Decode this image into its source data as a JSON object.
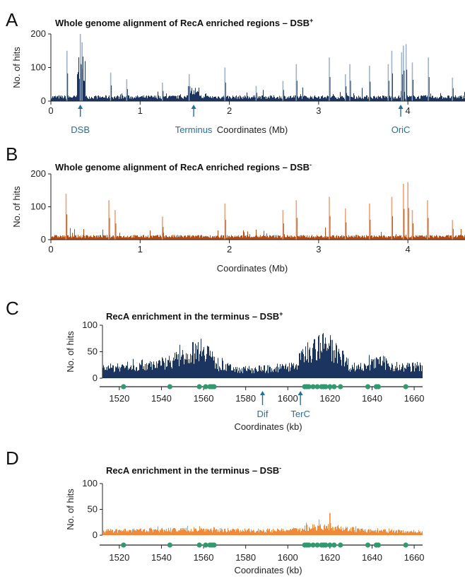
{
  "colors": {
    "dsb_plus": "#1b3560",
    "dsb_plus_spike": "#9fb3c8",
    "dsb_minus": "#b84a12",
    "dsb_minus_spike": "#e7a57f",
    "terminus_minus": "#f0893a",
    "marker": "#2e9a6e",
    "annotation": "#1f6f9f"
  },
  "chart_data": [
    {
      "panel": "A",
      "type": "area",
      "title_main": "Whole genome alignment of RecA enriched regions – DSB",
      "title_sup": "+",
      "xlabel": "Coordinates (Mb)",
      "ylabel": "No. of hits",
      "xlim": [
        0,
        4.64
      ],
      "ylim": [
        0,
        200
      ],
      "xticks": [
        0,
        1,
        2,
        3,
        4
      ],
      "yticks": [
        0,
        100,
        200
      ],
      "baseline": 12,
      "spikes": [
        {
          "x": 0.18,
          "y": 150
        },
        {
          "x": 0.33,
          "y": 200
        },
        {
          "x": 0.35,
          "y": 175
        },
        {
          "x": 0.67,
          "y": 85
        },
        {
          "x": 0.85,
          "y": 65
        },
        {
          "x": 1.25,
          "y": 55
        },
        {
          "x": 1.55,
          "y": 80
        },
        {
          "x": 1.95,
          "y": 100
        },
        {
          "x": 2.3,
          "y": 45
        },
        {
          "x": 2.6,
          "y": 60
        },
        {
          "x": 2.75,
          "y": 110
        },
        {
          "x": 3.12,
          "y": 130
        },
        {
          "x": 3.3,
          "y": 80
        },
        {
          "x": 3.35,
          "y": 110
        },
        {
          "x": 3.57,
          "y": 105
        },
        {
          "x": 3.78,
          "y": 110
        },
        {
          "x": 3.82,
          "y": 150
        },
        {
          "x": 3.93,
          "y": 145
        },
        {
          "x": 3.95,
          "y": 165
        },
        {
          "x": 3.98,
          "y": 170
        },
        {
          "x": 4.05,
          "y": 115
        },
        {
          "x": 4.23,
          "y": 130
        },
        {
          "x": 4.5,
          "y": 70
        }
      ],
      "annotations": [
        {
          "x": 0.33,
          "label": "DSB"
        },
        {
          "x": 1.6,
          "label": "Terminus"
        },
        {
          "x": 3.92,
          "label": "OriC"
        }
      ]
    },
    {
      "panel": "B",
      "type": "area",
      "title_main": "Whole genome alignment of RecA enriched regions – DSB",
      "title_sup": "-",
      "xlabel": "Coordinates (Mb)",
      "ylabel": "No. of hits",
      "xlim": [
        0,
        4.64
      ],
      "ylim": [
        0,
        200
      ],
      "xticks": [
        0,
        1,
        2,
        3,
        4
      ],
      "yticks": [
        0,
        100,
        200
      ],
      "baseline": 10,
      "spikes": [
        {
          "x": 0.17,
          "y": 140
        },
        {
          "x": 0.65,
          "y": 120
        },
        {
          "x": 0.72,
          "y": 90
        },
        {
          "x": 1.25,
          "y": 70
        },
        {
          "x": 1.95,
          "y": 110
        },
        {
          "x": 2.6,
          "y": 90
        },
        {
          "x": 2.75,
          "y": 120
        },
        {
          "x": 3.12,
          "y": 130
        },
        {
          "x": 3.3,
          "y": 95
        },
        {
          "x": 3.57,
          "y": 110
        },
        {
          "x": 3.82,
          "y": 130
        },
        {
          "x": 3.95,
          "y": 170
        },
        {
          "x": 4.0,
          "y": 175
        },
        {
          "x": 4.05,
          "y": 90
        },
        {
          "x": 4.22,
          "y": 120
        },
        {
          "x": 4.5,
          "y": 60
        }
      ],
      "annotations": []
    },
    {
      "panel": "C",
      "type": "area",
      "title_main": "RecA enrichment in the terminus – DSB",
      "title_sup": "+",
      "xlabel": "Coordinates (kb)",
      "ylabel": "No. of hits",
      "xlim": [
        1512,
        1664
      ],
      "ylim": [
        0,
        100
      ],
      "xticks": [
        1520,
        1540,
        1560,
        1580,
        1600,
        1620,
        1640,
        1660
      ],
      "yticks": [
        0,
        50,
        100
      ],
      "profile": [
        {
          "x": 1512,
          "y": 18
        },
        {
          "x": 1525,
          "y": 22
        },
        {
          "x": 1540,
          "y": 28
        },
        {
          "x": 1550,
          "y": 38
        },
        {
          "x": 1556,
          "y": 50
        },
        {
          "x": 1560,
          "y": 60
        },
        {
          "x": 1563,
          "y": 48
        },
        {
          "x": 1566,
          "y": 22
        },
        {
          "x": 1580,
          "y": 16
        },
        {
          "x": 1595,
          "y": 18
        },
        {
          "x": 1604,
          "y": 24
        },
        {
          "x": 1608,
          "y": 48
        },
        {
          "x": 1612,
          "y": 55
        },
        {
          "x": 1617,
          "y": 60
        },
        {
          "x": 1622,
          "y": 52
        },
        {
          "x": 1625,
          "y": 45
        },
        {
          "x": 1630,
          "y": 20
        },
        {
          "x": 1640,
          "y": 26
        },
        {
          "x": 1645,
          "y": 30
        },
        {
          "x": 1652,
          "y": 20
        },
        {
          "x": 1664,
          "y": 22
        }
      ],
      "markers": [
        1522,
        1544,
        1558,
        1561,
        1563,
        1564,
        1565,
        1608,
        1609,
        1610,
        1612,
        1614,
        1616,
        1617,
        1618,
        1620,
        1622,
        1625,
        1638,
        1642,
        1643,
        1656
      ],
      "annotations": [
        {
          "x": 1588,
          "label": "Dif"
        },
        {
          "x": 1606,
          "label": "TerC"
        }
      ]
    },
    {
      "panel": "D",
      "type": "area",
      "title_main": "RecA enrichment in the terminus – DSB",
      "title_sup": "-",
      "xlabel": "Coordinates (kb)",
      "ylabel": "No. of hits",
      "xlim": [
        1512,
        1664
      ],
      "ylim": [
        0,
        100
      ],
      "xticks": [
        1520,
        1540,
        1560,
        1580,
        1600,
        1620,
        1640,
        1660
      ],
      "yticks": [
        0,
        50,
        100
      ],
      "profile": [
        {
          "x": 1512,
          "y": 8
        },
        {
          "x": 1540,
          "y": 10
        },
        {
          "x": 1560,
          "y": 11
        },
        {
          "x": 1580,
          "y": 9
        },
        {
          "x": 1600,
          "y": 9
        },
        {
          "x": 1606,
          "y": 10
        },
        {
          "x": 1610,
          "y": 15
        },
        {
          "x": 1620,
          "y": 17
        },
        {
          "x": 1626,
          "y": 13
        },
        {
          "x": 1640,
          "y": 8
        },
        {
          "x": 1664,
          "y": 7
        }
      ],
      "spikes": [
        {
          "x": 1620,
          "y": 43
        }
      ],
      "markers": [
        1522,
        1544,
        1558,
        1561,
        1563,
        1564,
        1565,
        1608,
        1609,
        1610,
        1612,
        1614,
        1616,
        1617,
        1618,
        1620,
        1622,
        1625,
        1638,
        1642,
        1643,
        1656
      ],
      "annotations": []
    }
  ]
}
